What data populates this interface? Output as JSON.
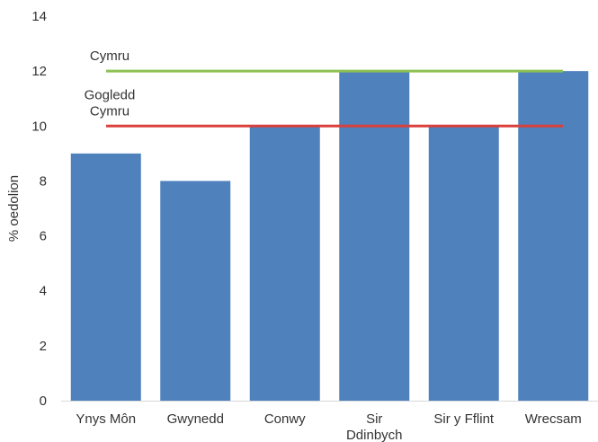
{
  "chart_data": {
    "type": "bar",
    "title": "",
    "xlabel": "",
    "ylabel": "% oedolion",
    "ylim": [
      0,
      14
    ],
    "yticks": [
      0,
      2,
      4,
      6,
      8,
      10,
      12,
      14
    ],
    "grid": false,
    "categories": [
      [
        "Ynys Môn"
      ],
      [
        "Gwynedd"
      ],
      [
        "Conwy"
      ],
      [
        "Sir",
        "Ddinbych"
      ],
      [
        "Sir y Fflint"
      ],
      [
        "Wrecsam"
      ]
    ],
    "values": [
      9,
      8,
      10,
      12,
      10,
      12
    ],
    "bar_color": "#4f81bd",
    "reference_lines": [
      {
        "label": [
          "Cymru"
        ],
        "value": 12,
        "color": "#8dc152"
      },
      {
        "label": [
          "Gogledd",
          "Cymru"
        ],
        "value": 10,
        "color": "#d9403c"
      }
    ]
  }
}
